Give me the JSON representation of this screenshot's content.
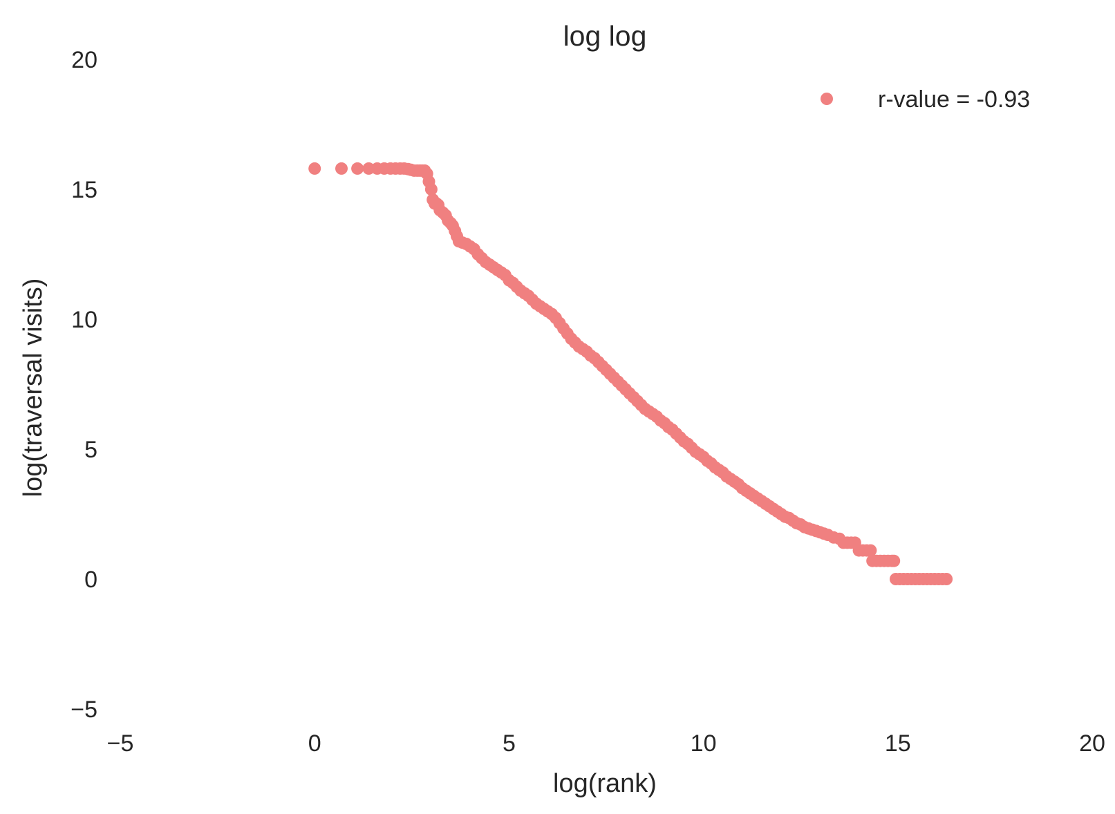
{
  "chart_data": {
    "type": "scatter",
    "title": "log log",
    "xlabel": "log(rank)",
    "ylabel": "log(traversal visits)",
    "xlim": [
      -5,
      20
    ],
    "ylim": [
      -5,
      20
    ],
    "xticks": [
      -5,
      0,
      5,
      10,
      15,
      20
    ],
    "yticks": [
      -5,
      0,
      5,
      10,
      15,
      20
    ],
    "xtick_labels": [
      "−5",
      "0",
      "5",
      "10",
      "15",
      "20"
    ],
    "ytick_labels": [
      "−5",
      "0",
      "5",
      "10",
      "15",
      "20"
    ],
    "grid": false,
    "legend_position": "top-right",
    "series": [
      {
        "name": "r-value = -0.93",
        "color": "#f08080",
        "points": [
          [
            0.0,
            15.8
          ],
          [
            0.69,
            15.8
          ],
          [
            1.1,
            15.8
          ],
          [
            1.39,
            15.8
          ],
          [
            1.61,
            15.8
          ],
          [
            1.79,
            15.8
          ],
          [
            1.95,
            15.8
          ],
          [
            2.08,
            15.8
          ],
          [
            2.2,
            15.8
          ],
          [
            2.3,
            15.8
          ],
          [
            2.4,
            15.78
          ],
          [
            2.48,
            15.75
          ],
          [
            2.56,
            15.72
          ],
          [
            2.64,
            15.72
          ],
          [
            2.71,
            15.72
          ],
          [
            2.77,
            15.72
          ],
          [
            2.83,
            15.72
          ],
          [
            2.89,
            15.6
          ],
          [
            2.94,
            15.3
          ],
          [
            3.0,
            15.0
          ],
          [
            3.04,
            14.6
          ],
          [
            3.09,
            14.45
          ],
          [
            3.14,
            14.45
          ],
          [
            3.18,
            14.4
          ],
          [
            3.22,
            14.2
          ],
          [
            3.3,
            14.1
          ],
          [
            3.37,
            14.0
          ],
          [
            3.43,
            13.8
          ],
          [
            3.5,
            13.7
          ],
          [
            3.55,
            13.6
          ],
          [
            3.61,
            13.4
          ],
          [
            3.66,
            13.2
          ],
          [
            3.71,
            13.0
          ],
          [
            3.8,
            12.95
          ],
          [
            3.9,
            12.9
          ],
          [
            4.0,
            12.8
          ],
          [
            4.1,
            12.7
          ],
          [
            4.2,
            12.5
          ],
          [
            4.3,
            12.35
          ],
          [
            4.4,
            12.2
          ],
          [
            4.5,
            12.1
          ],
          [
            4.6,
            12.0
          ],
          [
            4.7,
            11.9
          ],
          [
            4.8,
            11.8
          ],
          [
            4.9,
            11.7
          ],
          [
            5.0,
            11.5
          ],
          [
            5.1,
            11.4
          ],
          [
            5.2,
            11.25
          ],
          [
            5.3,
            11.1
          ],
          [
            5.4,
            11.0
          ],
          [
            5.5,
            10.9
          ],
          [
            5.6,
            10.75
          ],
          [
            5.7,
            10.6
          ],
          [
            5.8,
            10.5
          ],
          [
            5.9,
            10.4
          ],
          [
            6.0,
            10.3
          ],
          [
            6.1,
            10.2
          ],
          [
            6.2,
            10.05
          ],
          [
            6.3,
            9.85
          ],
          [
            6.4,
            9.65
          ],
          [
            6.5,
            9.45
          ],
          [
            6.6,
            9.25
          ],
          [
            6.7,
            9.1
          ],
          [
            6.8,
            8.95
          ],
          [
            6.9,
            8.85
          ],
          [
            7.0,
            8.75
          ],
          [
            7.1,
            8.6
          ],
          [
            7.2,
            8.5
          ],
          [
            7.3,
            8.35
          ],
          [
            7.4,
            8.2
          ],
          [
            7.5,
            8.05
          ],
          [
            7.6,
            7.9
          ],
          [
            7.7,
            7.75
          ],
          [
            7.8,
            7.6
          ],
          [
            7.9,
            7.45
          ],
          [
            8.0,
            7.3
          ],
          [
            8.1,
            7.15
          ],
          [
            8.2,
            7.0
          ],
          [
            8.3,
            6.85
          ],
          [
            8.4,
            6.7
          ],
          [
            8.5,
            6.55
          ],
          [
            8.6,
            6.45
          ],
          [
            8.7,
            6.35
          ],
          [
            8.8,
            6.25
          ],
          [
            8.9,
            6.1
          ],
          [
            9.0,
            6.0
          ],
          [
            9.1,
            5.85
          ],
          [
            9.2,
            5.75
          ],
          [
            9.3,
            5.6
          ],
          [
            9.4,
            5.45
          ],
          [
            9.5,
            5.3
          ],
          [
            9.6,
            5.2
          ],
          [
            9.7,
            5.05
          ],
          [
            9.8,
            4.9
          ],
          [
            9.9,
            4.8
          ],
          [
            10.0,
            4.7
          ],
          [
            10.1,
            4.55
          ],
          [
            10.2,
            4.45
          ],
          [
            10.3,
            4.3
          ],
          [
            10.4,
            4.2
          ],
          [
            10.5,
            4.1
          ],
          [
            10.6,
            3.95
          ],
          [
            10.7,
            3.85
          ],
          [
            10.8,
            3.75
          ],
          [
            10.9,
            3.65
          ],
          [
            11.0,
            3.5
          ],
          [
            11.1,
            3.4
          ],
          [
            11.2,
            3.3
          ],
          [
            11.3,
            3.2
          ],
          [
            11.4,
            3.1
          ],
          [
            11.5,
            3.0
          ],
          [
            11.6,
            2.9
          ],
          [
            11.7,
            2.8
          ],
          [
            11.8,
            2.7
          ],
          [
            11.9,
            2.6
          ],
          [
            12.0,
            2.5
          ],
          [
            12.1,
            2.4
          ],
          [
            12.2,
            2.35
          ],
          [
            12.3,
            2.25
          ],
          [
            12.4,
            2.15
          ],
          [
            12.5,
            2.1
          ],
          [
            12.6,
            2.0
          ],
          [
            12.7,
            1.95
          ],
          [
            12.8,
            1.9
          ],
          [
            12.9,
            1.85
          ],
          [
            13.0,
            1.8
          ],
          [
            13.1,
            1.75
          ],
          [
            13.2,
            1.7
          ],
          [
            13.35,
            1.6
          ],
          [
            13.5,
            1.55
          ],
          [
            13.6,
            1.4
          ],
          [
            13.7,
            1.4
          ],
          [
            13.8,
            1.4
          ],
          [
            13.9,
            1.4
          ],
          [
            14.0,
            1.1
          ],
          [
            14.1,
            1.1
          ],
          [
            14.2,
            1.1
          ],
          [
            14.3,
            1.1
          ],
          [
            14.35,
            0.7
          ],
          [
            14.45,
            0.7
          ],
          [
            14.55,
            0.7
          ],
          [
            14.65,
            0.7
          ],
          [
            14.75,
            0.7
          ],
          [
            14.85,
            0.7
          ],
          [
            14.9,
            0.7
          ],
          [
            14.95,
            0.0
          ],
          [
            15.05,
            0.0
          ],
          [
            15.15,
            0.0
          ],
          [
            15.25,
            0.0
          ],
          [
            15.35,
            0.0
          ],
          [
            15.45,
            0.0
          ],
          [
            15.55,
            0.0
          ],
          [
            15.65,
            0.0
          ],
          [
            15.75,
            0.0
          ],
          [
            15.85,
            0.0
          ],
          [
            15.95,
            0.0
          ],
          [
            16.05,
            0.0
          ],
          [
            16.15,
            0.0
          ],
          [
            16.25,
            0.0
          ]
        ]
      }
    ]
  }
}
